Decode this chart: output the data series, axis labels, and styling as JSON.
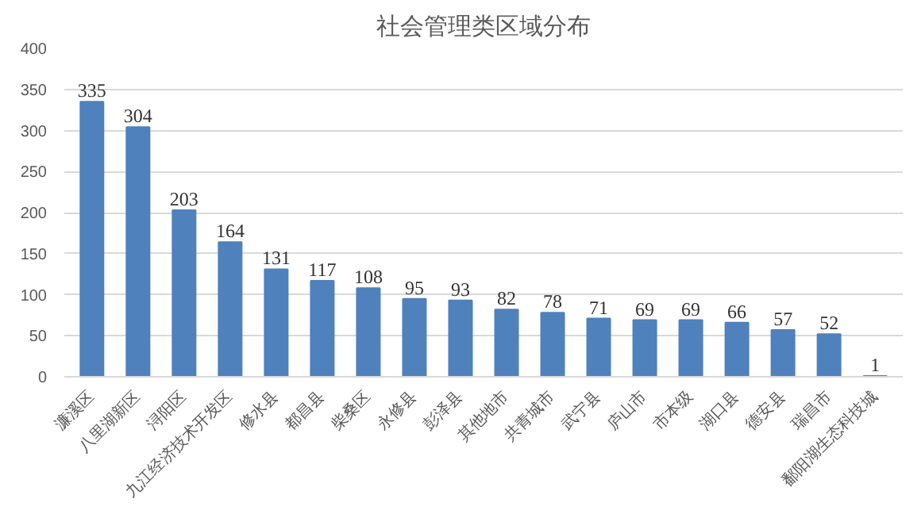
{
  "chart_data": {
    "type": "bar",
    "title": "社会管理类区域分布",
    "categories": [
      "濂溪区",
      "八里湖新区",
      "浔阳区",
      "九江经济技术开发区",
      "修水县",
      "都昌县",
      "柴桑区",
      "永修县",
      "彭泽县",
      "其他地市",
      "共青城市",
      "武宁县",
      "庐山市",
      "市本级",
      "湖口县",
      "德安县",
      "瑞昌市",
      "鄱阳湖生态科技城"
    ],
    "values": [
      335,
      304,
      203,
      164,
      131,
      117,
      108,
      95,
      93,
      82,
      78,
      71,
      69,
      69,
      66,
      57,
      52,
      1
    ],
    "color": "#4f81bd",
    "ylim": [
      0,
      400
    ],
    "yticks": [
      0,
      50,
      100,
      150,
      200,
      250,
      300,
      350,
      400
    ],
    "grid": "y",
    "data_labels": true
  }
}
